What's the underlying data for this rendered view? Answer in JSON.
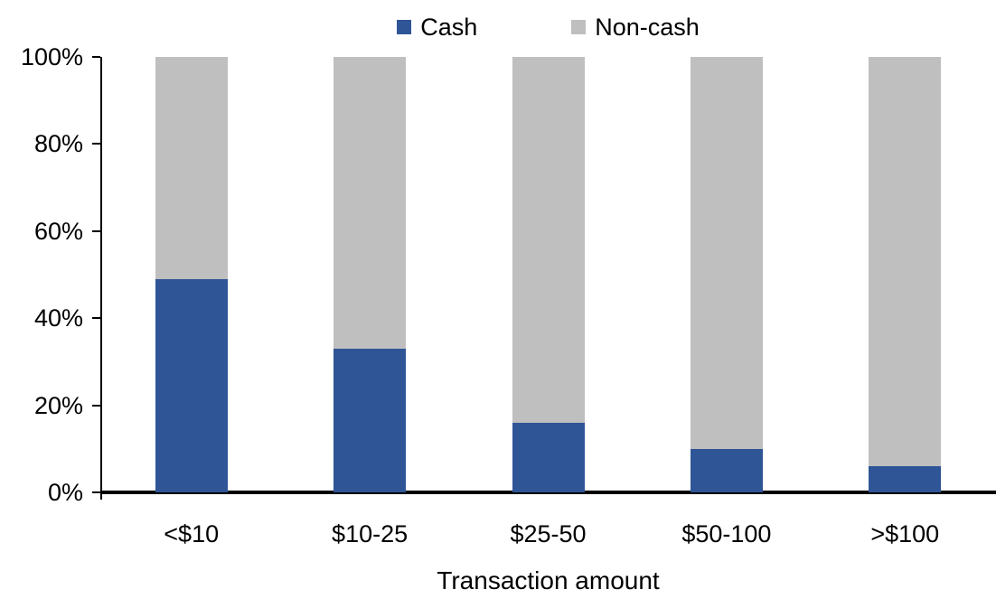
{
  "chart_data": {
    "type": "bar",
    "variant": "stacked-100-percent",
    "title": "",
    "xlabel": "Transaction amount",
    "ylabel": "",
    "categories": [
      "<$10",
      "$10-25",
      "$25-50",
      "$50-100",
      ">$100"
    ],
    "series": [
      {
        "name": "Cash",
        "color": "#2F5596",
        "values": [
          49,
          33,
          16,
          10,
          6
        ]
      },
      {
        "name": "Non-cash",
        "color": "#BFBFBF",
        "values": [
          51,
          67,
          84,
          90,
          94
        ]
      }
    ],
    "y_axis": {
      "min": 0,
      "max": 100,
      "tick_step": 20,
      "tick_labels": [
        "0%",
        "20%",
        "40%",
        "60%",
        "80%",
        "100%"
      ]
    },
    "legend": {
      "position": "top"
    },
    "grid": false,
    "colors": {
      "axis": "#000000",
      "text": "#000000",
      "background": "#FFFFFF",
      "cash": "#2F5596",
      "non_cash": "#BFBFBF"
    }
  }
}
